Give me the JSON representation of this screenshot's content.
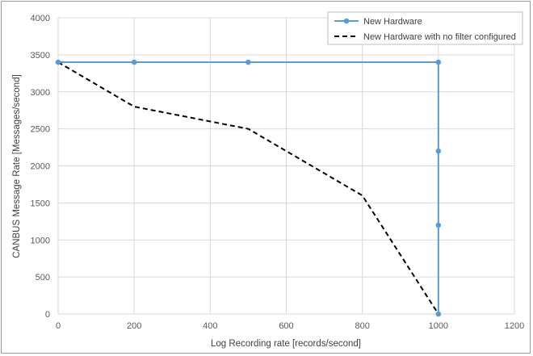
{
  "chart_data": {
    "type": "line",
    "xlabel": "Log Recording rate [records/second]",
    "ylabel": "CANBUS  Message Rate [Messages/second]",
    "xlim": [
      0,
      1200
    ],
    "ylim": [
      0,
      4000
    ],
    "x_ticks": [
      0,
      200,
      400,
      600,
      800,
      1000,
      1200
    ],
    "y_ticks": [
      0,
      500,
      1000,
      1500,
      2000,
      2500,
      3000,
      3500,
      4000
    ],
    "grid": true,
    "legend_position": "top-right",
    "series": [
      {
        "name": "New Hardware",
        "color": "#5b9bd5",
        "style": "solid-with-markers",
        "points": [
          {
            "x": 0,
            "y": 3400
          },
          {
            "x": 200,
            "y": 3400
          },
          {
            "x": 500,
            "y": 3400
          },
          {
            "x": 1000,
            "y": 3400
          },
          {
            "x": 1000,
            "y": 2200
          },
          {
            "x": 1000,
            "y": 1200
          },
          {
            "x": 1000,
            "y": 0
          }
        ]
      },
      {
        "name": "New Hardware with no filter configured",
        "color": "#000000",
        "style": "dashed",
        "points": [
          {
            "x": 0,
            "y": 3400
          },
          {
            "x": 200,
            "y": 2800
          },
          {
            "x": 500,
            "y": 2500
          },
          {
            "x": 800,
            "y": 1600
          },
          {
            "x": 1000,
            "y": 0
          }
        ]
      }
    ]
  }
}
